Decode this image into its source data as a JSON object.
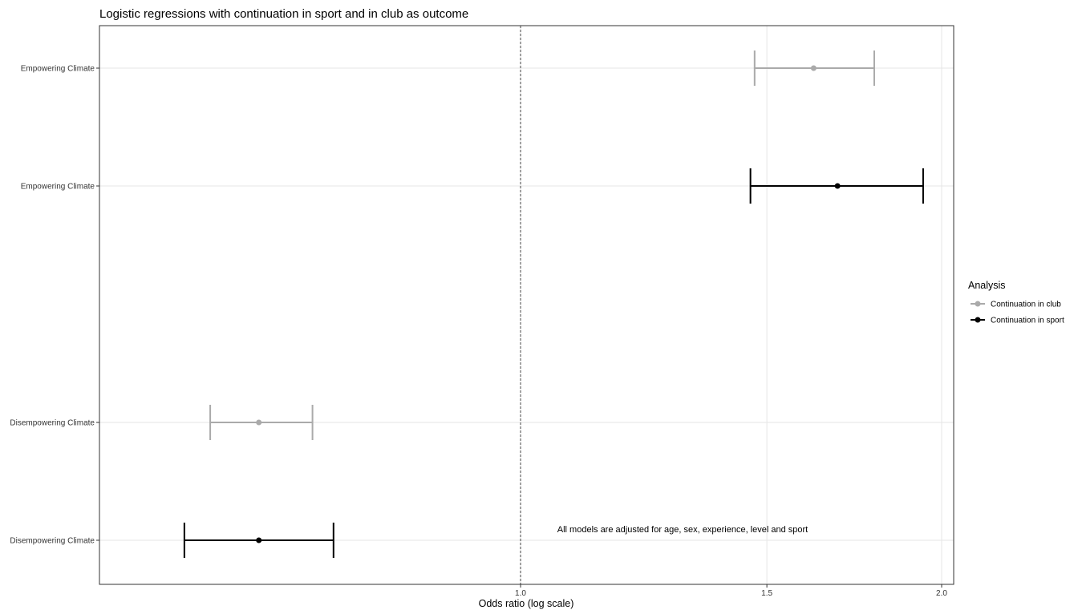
{
  "chart_data": {
    "type": "forest",
    "title": "Logistic regressions with continuation in sport and in club as outcome",
    "xlabel": "Odds ratio (log scale)",
    "x_scale": "log",
    "x_ticks": [
      1.0,
      1.5,
      2.0
    ],
    "x_tick_labels": [
      "1.0",
      "1.5",
      "2.0"
    ],
    "xlim": [
      0.5,
      2.04
    ],
    "reference_line": 1.0,
    "categories": [
      "Empowering Climate",
      "Empowering Climate",
      "Disempowering Climate",
      "Disempowering Climate"
    ],
    "series": [
      {
        "name": "Continuation in club",
        "color": "#aaaaaa",
        "points": [
          {
            "label": "Empowering Climate",
            "or": 1.62,
            "lower": 1.47,
            "upper": 1.79
          },
          {
            "label": "Disempowering Climate",
            "or": 0.65,
            "lower": 0.6,
            "upper": 0.71
          }
        ]
      },
      {
        "name": "Continuation in sport",
        "color": "#000000",
        "points": [
          {
            "label": "Empowering Climate",
            "or": 1.685,
            "lower": 1.46,
            "upper": 1.94
          },
          {
            "label": "Disempowering Climate",
            "or": 0.65,
            "lower": 0.575,
            "upper": 0.735
          }
        ]
      }
    ],
    "legend": {
      "title": "Analysis",
      "position": "right"
    },
    "annotation": "All models are adjusted for age, sex, experience, level and sport",
    "grid": true
  }
}
